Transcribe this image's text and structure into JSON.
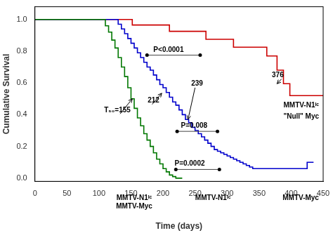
{
  "chart_data": {
    "type": "step",
    "xlabel": "Time (days)",
    "ylabel": "Cumulative Survival",
    "xlim": [
      0,
      450
    ],
    "ylim": [
      -0.02,
      1.08
    ],
    "xticks": [
      0,
      50,
      100,
      150,
      200,
      250,
      300,
      350,
      400,
      450
    ],
    "yticks": [
      {
        "value": 0.0,
        "label": "0.0"
      },
      0.2,
      0.4,
      0.6,
      0.8,
      {
        "value": 1.0,
        "label": "1.0"
      }
    ],
    "grid": false,
    "series": [
      {
        "color": "#007700",
        "x": [
          0,
          110,
          115,
          120,
          125,
          130,
          135,
          140,
          145,
          150,
          155,
          160,
          165,
          170,
          175,
          180,
          185,
          190,
          195,
          200,
          205,
          210,
          215,
          220,
          225,
          230
        ],
        "values": [
          1.0,
          1.0,
          0.96,
          0.92,
          0.87,
          0.82,
          0.76,
          0.7,
          0.64,
          0.57,
          0.5,
          0.44,
          0.38,
          0.33,
          0.28,
          0.24,
          0.2,
          0.16,
          0.12,
          0.09,
          0.06,
          0.04,
          0.02,
          0.01,
          0.0,
          0.0
        ]
      },
      {
        "color": "#0000CC",
        "x": [
          0,
          130,
          135,
          140,
          145,
          150,
          155,
          160,
          165,
          170,
          175,
          180,
          185,
          190,
          195,
          200,
          205,
          210,
          215,
          220,
          225,
          230,
          235,
          240,
          245,
          250,
          255,
          260,
          265,
          270,
          275,
          280,
          285,
          290,
          295,
          300,
          305,
          310,
          315,
          320,
          325,
          330,
          335,
          340,
          345,
          350,
          355,
          360,
          365,
          370,
          375,
          380,
          385,
          390,
          395,
          400,
          405,
          410,
          415,
          420,
          425,
          430,
          435
        ],
        "values": [
          1.0,
          1.0,
          0.97,
          0.94,
          0.91,
          0.88,
          0.85,
          0.82,
          0.79,
          0.76,
          0.73,
          0.7,
          0.68,
          0.65,
          0.62,
          0.59,
          0.57,
          0.54,
          0.51,
          0.48,
          0.46,
          0.43,
          0.4,
          0.37,
          0.35,
          0.32,
          0.3,
          0.28,
          0.26,
          0.24,
          0.22,
          0.2,
          0.18,
          0.17,
          0.16,
          0.15,
          0.14,
          0.13,
          0.12,
          0.11,
          0.1,
          0.09,
          0.08,
          0.07,
          0.06,
          0.06,
          0.06,
          0.06,
          0.06,
          0.06,
          0.06,
          0.06,
          0.06,
          0.06,
          0.06,
          0.06,
          0.06,
          0.06,
          0.06,
          0.06,
          0.06,
          0.1,
          0.1
        ]
      },
      {
        "color": "#CC0000",
        "x": [
          0,
          152,
          160,
          210,
          220,
          267,
          282,
          310,
          328,
          362,
          378,
          388,
          398,
          408,
          450
        ],
        "values": [
          1.0,
          1.0,
          0.965,
          0.965,
          0.925,
          0.925,
          0.875,
          0.875,
          0.825,
          0.825,
          0.77,
          0.68,
          0.595,
          0.52,
          0.52
        ]
      }
    ],
    "annotations": [
      {
        "text": "T₅₀=155",
        "x": 108,
        "y": 0.415,
        "arrow": {
          "from": [
            133,
            0.405
          ],
          "to": [
            152,
            0.5
          ]
        }
      },
      {
        "text": "212",
        "x": 176,
        "y": 0.475,
        "arrow": {
          "from": [
            183,
            0.465
          ],
          "to": [
            198,
            0.535
          ]
        }
      },
      {
        "text": "239",
        "x": 244,
        "y": 0.585,
        "arrow": {
          "from": [
            250,
            0.57
          ],
          "to": [
            239,
            0.37
          ]
        }
      },
      {
        "text": "376",
        "x": 370,
        "y": 0.635,
        "arrow": {
          "from": [
            385,
            0.625
          ],
          "to": [
            378,
            0.595
          ]
        }
      },
      {
        "text": "P<0.0001",
        "x": 185,
        "y": 0.797,
        "line": {
          "x": [
            175,
            258
          ],
          "y": 0.775
        }
      },
      {
        "text": "P=0.008",
        "x": 228,
        "y": 0.317,
        "line": {
          "x": [
            222,
            285
          ],
          "y": 0.295
        }
      },
      {
        "text": "P=0.0002",
        "x": 218,
        "y": 0.077,
        "line": {
          "x": [
            220,
            288
          ],
          "y": 0.055
        }
      },
      {
        "text": "MMTV-N1ᴵᶜ",
        "x": 155,
        "y": -0.115
      },
      {
        "text": "MMTV-Myc",
        "x": 155,
        "y": -0.185
      },
      {
        "text": "MMTV-N1ᴵᶜ",
        "x": 278,
        "y": -0.115
      },
      {
        "text": "MMTV-Myc",
        "x": 415,
        "y": -0.115
      },
      {
        "text": "MMTV-N1ᴵᶜ",
        "x": 388,
        "y": 0.445
      },
      {
        "text": "\"Null\" Myc",
        "x": 388,
        "y": 0.375
      }
    ]
  }
}
